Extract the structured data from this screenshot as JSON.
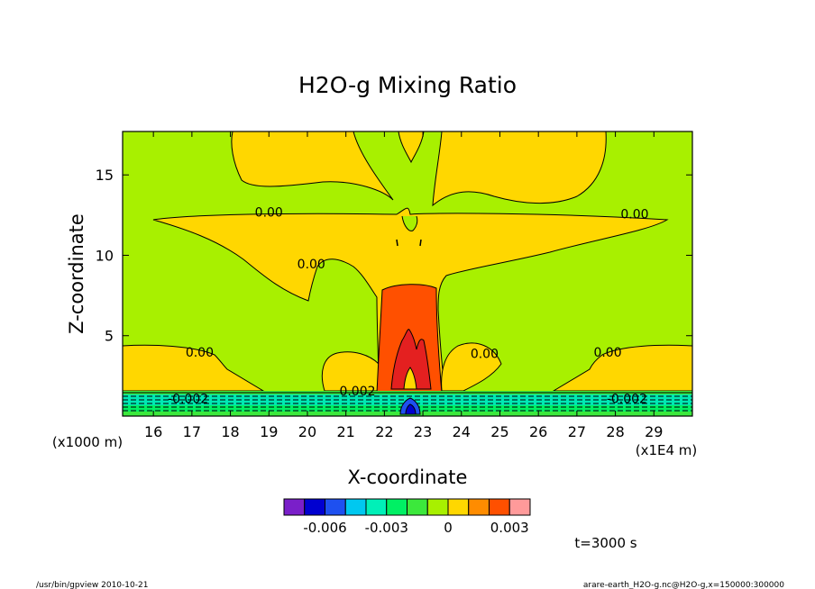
{
  "chart_data": {
    "type": "contour",
    "title": "H2O-g Mixing Ratio",
    "xlabel": "X-coordinate",
    "ylabel": "Z-coordinate",
    "xunit_left": "(x1000 m)",
    "xunit_right": "(x1E4 m)",
    "xlim": [
      15.2,
      30.0
    ],
    "ylim": [
      0.0,
      17.7
    ],
    "xticks": [
      16,
      17,
      18,
      19,
      20,
      21,
      22,
      23,
      24,
      25,
      26,
      27,
      28,
      29
    ],
    "yticks": [
      5,
      10,
      15
    ],
    "contour_labels": [
      {
        "text": "0.00",
        "x": 19.0,
        "y": 12.4
      },
      {
        "text": "0.00",
        "x": 28.5,
        "y": 12.3
      },
      {
        "text": "0.00",
        "x": 20.1,
        "y": 9.2
      },
      {
        "text": "0.00",
        "x": 17.2,
        "y": 3.7
      },
      {
        "text": "0.00",
        "x": 24.6,
        "y": 3.6
      },
      {
        "text": "0.00",
        "x": 27.8,
        "y": 3.7
      },
      {
        "text": "-0.002",
        "x": 16.9,
        "y": 0.8
      },
      {
        "text": "-0.002",
        "x": 28.3,
        "y": 0.8
      },
      {
        "text": "0.002",
        "x": 21.3,
        "y": 1.3
      }
    ],
    "colorbar": {
      "colors": [
        "#7a1fc9",
        "#0000d0",
        "#1e50f0",
        "#00c8f0",
        "#00f0b8",
        "#00f064",
        "#3ce83c",
        "#a8f000",
        "#ffd700",
        "#ff8c00",
        "#ff5000",
        "#ff9a9a"
      ],
      "tick_labels": [
        "-0.006",
        "-0.003",
        "0",
        "0.003"
      ],
      "tick_values": [
        -0.006,
        -0.003,
        0.0,
        0.003
      ],
      "range": [
        -0.008,
        0.004
      ]
    },
    "time_label": "t=3000 s"
  },
  "footer": {
    "left": "/usr/bin/gpview  2010-10-21",
    "right": "arare-earth_H2O-g.nc@H2O-g,x=150000:300000"
  }
}
